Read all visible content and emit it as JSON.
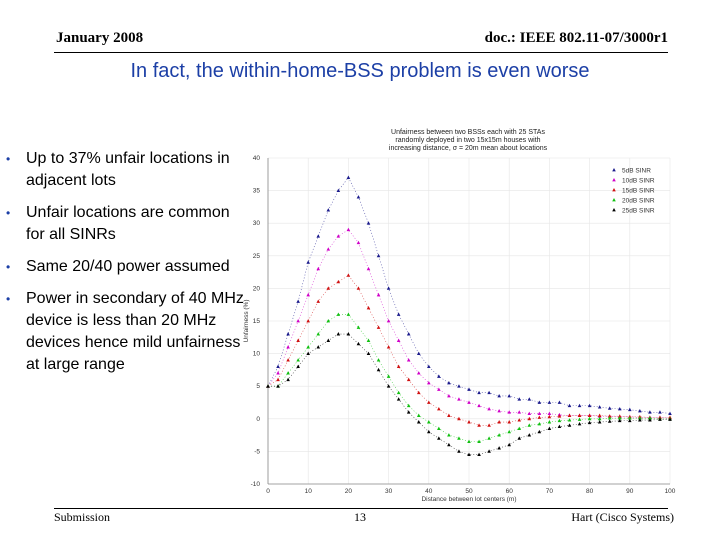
{
  "header": {
    "date": "January 2008",
    "doc": "doc.: IEEE 802.11-07/3000r1"
  },
  "title": "In fact, the within-home-BSS problem is even worse",
  "bullets": [
    "Up to 37% unfair locations in adjacent lots",
    "Unfair locations are common for all SINRs",
    "Same 20/40 power assumed",
    "Power in secondary of 40 MHz device is less than 20 MHz devices hence mild unfairness at large range"
  ],
  "footer": {
    "left": "Submission",
    "page": "13",
    "right": "Hart (Cisco Systems)"
  },
  "chart_data": {
    "type": "scatter",
    "title": "Unfairness between two BSSs each with 25 STAs randomly deployed in two 15x15m houses with increasing distance, σ = 20m mean about locations",
    "xlabel": "Distance between lot centers (m)",
    "ylabel": "Unfairness (%)",
    "xlim": [
      0,
      100
    ],
    "ylim": [
      -10,
      40
    ],
    "xticks": [
      0,
      10,
      20,
      30,
      40,
      50,
      60,
      70,
      80,
      90,
      100
    ],
    "yticks": [
      -10,
      -5,
      0,
      5,
      10,
      15,
      20,
      25,
      30,
      35,
      40
    ],
    "ytick_labels": [
      "-10",
      "-5",
      "0",
      "5",
      "10",
      "15",
      "20",
      "25",
      "30",
      "35",
      "40"
    ],
    "legend_position": "top-right",
    "x": [
      0,
      2.5,
      5,
      7.5,
      10,
      12.5,
      15,
      17.5,
      20,
      22.5,
      25,
      27.5,
      30,
      32.5,
      35,
      37.5,
      40,
      42.5,
      45,
      47.5,
      50,
      52.5,
      55,
      57.5,
      60,
      62.5,
      65,
      67.5,
      70,
      72.5,
      75,
      77.5,
      80,
      82.5,
      85,
      87.5,
      90,
      92.5,
      95,
      97.5,
      100
    ],
    "series": [
      {
        "name": "5dB SINR",
        "color": "#1a1a8c",
        "marker": "triangle",
        "values": [
          5,
          8,
          13,
          18,
          24,
          28,
          32,
          35,
          37,
          34,
          30,
          25,
          20,
          16,
          13,
          10,
          8,
          6.5,
          5.5,
          5,
          4.5,
          4,
          4,
          3.5,
          3.5,
          3,
          3,
          2.5,
          2.5,
          2.5,
          2,
          2,
          2,
          1.8,
          1.6,
          1.5,
          1.4,
          1.2,
          1,
          1,
          0.8
        ]
      },
      {
        "name": "10dB SINR",
        "color": "#d000c8",
        "marker": "triangle",
        "values": [
          5,
          7,
          11,
          15,
          19,
          23,
          26,
          28,
          29,
          27,
          23,
          19,
          15,
          12,
          9,
          7,
          5.5,
          4.5,
          3.5,
          3,
          2.5,
          2,
          1.5,
          1.2,
          1,
          1,
          0.8,
          0.8,
          0.8,
          0.6,
          0.5,
          0.5,
          0.5,
          0.4,
          0.4,
          0.3,
          0.3,
          0.2,
          0.2,
          0.2,
          0.1
        ]
      },
      {
        "name": "15dB SINR",
        "color": "#d01010",
        "marker": "triangle",
        "values": [
          5,
          6,
          9,
          12,
          15,
          18,
          20,
          21,
          22,
          20,
          17,
          14,
          11,
          8,
          6,
          4,
          2.5,
          1.5,
          0.5,
          0,
          -0.5,
          -1,
          -1,
          -0.5,
          -0.5,
          -0.2,
          0,
          0.2,
          0.3,
          0.4,
          0.5,
          0.5,
          0.5,
          0.5,
          0.4,
          0.4,
          0.3,
          0.3,
          0.2,
          0.2,
          0.2
        ]
      },
      {
        "name": "20dB SINR",
        "color": "#10c010",
        "marker": "triangle",
        "values": [
          5,
          5,
          7,
          9,
          11,
          13,
          15,
          16,
          16,
          14,
          12,
          9,
          6.5,
          4,
          2,
          0.5,
          -0.5,
          -1.5,
          -2.5,
          -3,
          -3.5,
          -3.5,
          -3,
          -2.5,
          -2,
          -1.5,
          -1,
          -0.8,
          -0.5,
          -0.3,
          -0.2,
          -0.1,
          0,
          0,
          0.1,
          0.1,
          0.1,
          0.1,
          0.1,
          0,
          0
        ]
      },
      {
        "name": "25dB SINR",
        "color": "#000000",
        "marker": "triangle",
        "values": [
          5,
          5,
          6,
          8,
          10,
          11,
          12,
          13,
          13,
          11.5,
          10,
          7.5,
          5,
          3,
          1,
          -0.5,
          -2,
          -3,
          -4,
          -5,
          -5.5,
          -5.5,
          -5,
          -4.5,
          -4,
          -3,
          -2.5,
          -2,
          -1.5,
          -1.2,
          -1,
          -0.8,
          -0.6,
          -0.5,
          -0.4,
          -0.3,
          -0.3,
          -0.2,
          -0.2,
          -0.1,
          -0.1
        ]
      }
    ]
  }
}
